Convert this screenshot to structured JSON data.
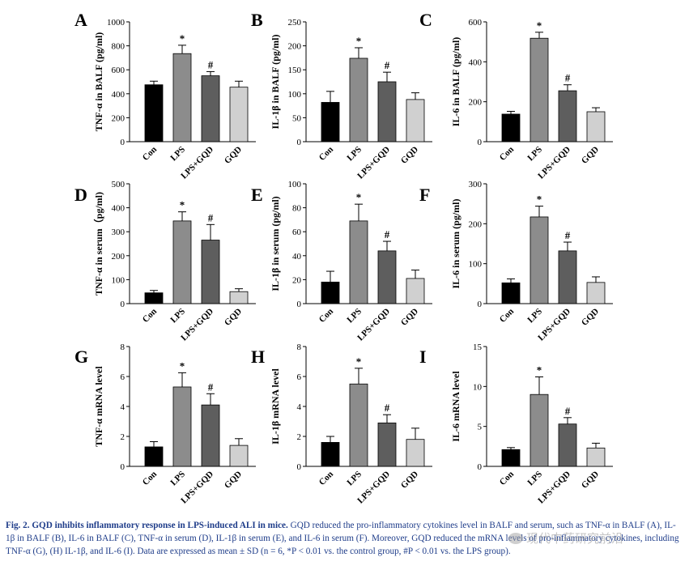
{
  "colors": {
    "con": "#000000",
    "lps": "#8c8c8c",
    "gqd": "#5e5e5e",
    "gqd2": "#d0d0d0",
    "caption": "#1f3d8a"
  },
  "chart_data": [
    {
      "type": "bar",
      "panel": "A",
      "ylabel": "TNF-α in BALF (pg/ml)",
      "categories": [
        "Con",
        "LPS",
        "LPS+GQD",
        "GQD"
      ],
      "values": [
        475,
        735,
        550,
        455
      ],
      "errors": [
        30,
        70,
        35,
        50
      ],
      "ylim": [
        0,
        1000
      ],
      "yticks": [
        0,
        200,
        400,
        600,
        800,
        1000
      ],
      "annotations": [
        "",
        "*",
        "#",
        ""
      ]
    },
    {
      "type": "bar",
      "panel": "B",
      "ylabel": "IL-1β in BALF (pg/ml)",
      "categories": [
        "Con",
        "LPS",
        "LPS+GQD",
        "GQD"
      ],
      "values": [
        82,
        174,
        125,
        88
      ],
      "errors": [
        23,
        22,
        20,
        14
      ],
      "ylim": [
        0,
        250
      ],
      "yticks": [
        0,
        50,
        100,
        150,
        200,
        250
      ],
      "annotations": [
        "",
        "*",
        "#",
        ""
      ]
    },
    {
      "type": "bar",
      "panel": "C",
      "ylabel": "IL-6 in BALF (pg/ml)",
      "categories": [
        "Con",
        "LPS",
        "LPS+GQD",
        "GQD"
      ],
      "values": [
        138,
        518,
        255,
        150
      ],
      "errors": [
        14,
        30,
        30,
        20
      ],
      "ylim": [
        0,
        600
      ],
      "yticks": [
        0,
        200,
        400,
        600
      ],
      "annotations": [
        "",
        "*",
        "#",
        ""
      ]
    },
    {
      "type": "bar",
      "panel": "D",
      "ylabel": "TNF-α in serum（pg/ml)",
      "categories": [
        "Con",
        "LPS",
        "LPS+GQD",
        "GQD"
      ],
      "values": [
        45,
        345,
        265,
        50
      ],
      "errors": [
        10,
        38,
        65,
        12
      ],
      "ylim": [
        0,
        500
      ],
      "yticks": [
        0,
        100,
        200,
        300,
        400,
        500
      ],
      "annotations": [
        "",
        "*",
        "#",
        ""
      ]
    },
    {
      "type": "bar",
      "panel": "E",
      "ylabel": "IL-1β in serum (pg/ml)",
      "categories": [
        "Con",
        "LPS",
        "LPS+GQD",
        "GQD"
      ],
      "values": [
        18,
        69,
        44,
        21
      ],
      "errors": [
        9,
        14,
        8,
        7
      ],
      "ylim": [
        0,
        100
      ],
      "yticks": [
        0,
        20,
        40,
        60,
        80,
        100
      ],
      "annotations": [
        "",
        "*",
        "#",
        ""
      ]
    },
    {
      "type": "bar",
      "panel": "F",
      "ylabel": "IL-6 in serum (pg/ml)",
      "categories": [
        "Con",
        "LPS",
        "LPS+GQD",
        "GQD"
      ],
      "values": [
        52,
        217,
        132,
        53
      ],
      "errors": [
        10,
        27,
        22,
        14
      ],
      "ylim": [
        0,
        300
      ],
      "yticks": [
        0,
        100,
        200,
        300
      ],
      "annotations": [
        "",
        "*",
        "#",
        ""
      ]
    },
    {
      "type": "bar",
      "panel": "G",
      "ylabel": "TNF-α mRNA level",
      "categories": [
        "Con",
        "LPS",
        "LPS+GQD",
        "GQD"
      ],
      "values": [
        1.3,
        5.3,
        4.1,
        1.4
      ],
      "errors": [
        0.35,
        0.95,
        0.75,
        0.45
      ],
      "ylim": [
        0,
        8
      ],
      "yticks": [
        0,
        2,
        4,
        6,
        8
      ],
      "annotations": [
        "",
        "*",
        "#",
        ""
      ]
    },
    {
      "type": "bar",
      "panel": "H",
      "ylabel": "IL-1β mRNA level",
      "categories": [
        "Con",
        "LPS",
        "LPS+GQD",
        "GQD"
      ],
      "values": [
        1.6,
        5.5,
        2.9,
        1.8
      ],
      "errors": [
        0.4,
        1.05,
        0.55,
        0.75
      ],
      "ylim": [
        0,
        8
      ],
      "yticks": [
        0,
        2,
        4,
        6,
        8
      ],
      "annotations": [
        "",
        "*",
        "#",
        ""
      ]
    },
    {
      "type": "bar",
      "panel": "I",
      "ylabel": "IL-6 mRNA level",
      "categories": [
        "Con",
        "LPS",
        "LPS+GQD",
        "GQD"
      ],
      "values": [
        2.1,
        9.0,
        5.3,
        2.3
      ],
      "errors": [
        0.25,
        2.2,
        0.8,
        0.6
      ],
      "ylim": [
        0,
        15
      ],
      "yticks": [
        0,
        5,
        10,
        15
      ],
      "annotations": [
        "",
        "*",
        "#",
        ""
      ]
    }
  ],
  "caption": {
    "label": "Fig. 2. GQD inhibits inflammatory response in LPS-induced ALI in mice.",
    "text": " GQD reduced the pro-inflammatory cytokines level in BALF and serum, such as TNF-α in BALF (A), IL-1β in BALF (B), IL-6 in BALF (C), TNF-α in serum (D), IL-1β in serum (E), and IL-6 in serum (F). Moreover, GQD reduced the mRNA levels of pro-inflammatory cytokines, including TNF-α (G), (H) IL-1β, and IL-6 (I). Data are expressed as mean ± SD (n = 6, *P < 0.01 vs. the control group, #P < 0.01 vs. the LPS group)."
  },
  "watermark": "现代中药研究前沿"
}
